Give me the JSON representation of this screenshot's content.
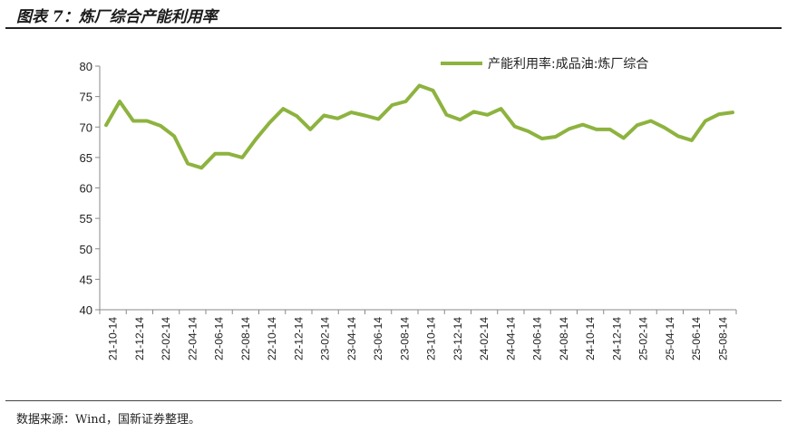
{
  "figure": {
    "title": "图表 7：炼厂综合产能利用率",
    "source": "数据来源：Wind，国新证券整理。"
  },
  "chart_data": {
    "type": "line",
    "title": "",
    "xlabel": "",
    "ylabel": "",
    "ylim": [
      40,
      80
    ],
    "yticks": [
      40,
      45,
      50,
      55,
      60,
      65,
      70,
      75,
      80
    ],
    "grid": false,
    "legend_position": "top-right",
    "tick_labels": [
      "21-10-14",
      "21-12-14",
      "22-02-14",
      "22-04-14",
      "22-06-14",
      "22-08-14",
      "22-10-14",
      "22-12-14",
      "23-02-14",
      "23-04-14",
      "23-06-14",
      "23-08-14",
      "23-10-14",
      "23-12-14",
      "24-02-14",
      "24-04-14",
      "24-06-14",
      "24-08-14",
      "24-10-14",
      "24-12-14",
      "25-02-14",
      "25-04-14",
      "25-06-14",
      "25-08-14"
    ],
    "series": [
      {
        "name": "产能利用率:成品油:炼厂综合",
        "color": "#8db33f",
        "values": [
          70.3,
          74.2,
          71.0,
          71.0,
          70.2,
          68.5,
          64.0,
          63.3,
          65.6,
          65.6,
          65.0,
          68.0,
          70.7,
          73.0,
          71.8,
          69.6,
          71.9,
          71.4,
          72.4,
          71.9,
          71.3,
          73.6,
          74.2,
          76.8,
          76.0,
          72.0,
          71.2,
          72.5,
          72.0,
          73.0,
          70.1,
          69.3,
          68.1,
          68.4,
          69.7,
          70.4,
          69.6,
          69.6,
          68.2,
          70.3,
          71.0,
          69.9,
          68.5,
          67.8,
          71.0,
          72.1,
          72.4
        ]
      }
    ]
  }
}
